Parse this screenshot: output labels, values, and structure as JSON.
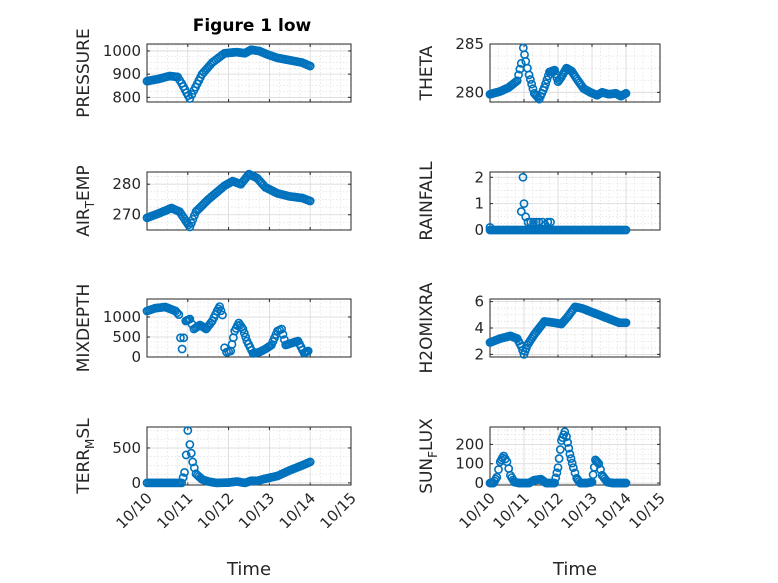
{
  "figure": {
    "title": "Figure 1 low",
    "marker_color": "#0072BD",
    "axis_color": "#262626",
    "grid": true,
    "minor_grid": true
  },
  "chart_data": [
    {
      "id": "pressure",
      "type": "scatter",
      "title": "Figure 1 low",
      "ylabel_parts": [
        {
          "t": "PRESSURE",
          "sub": false
        }
      ],
      "xlabel": "",
      "xlim": [
        0,
        5
      ],
      "ylim": [
        780,
        1030
      ],
      "yticks": [
        800,
        900,
        1000
      ],
      "x_ticklabels_visible": false,
      "keypoints": [
        [
          0,
          870
        ],
        [
          0.3,
          880
        ],
        [
          0.55,
          892
        ],
        [
          0.75,
          888
        ],
        [
          0.85,
          860
        ],
        [
          0.97,
          820
        ],
        [
          1.05,
          795
        ],
        [
          1.15,
          830
        ],
        [
          1.35,
          900
        ],
        [
          1.6,
          950
        ],
        [
          1.9,
          990
        ],
        [
          2.2,
          995
        ],
        [
          2.4,
          990
        ],
        [
          2.55,
          1005
        ],
        [
          2.75,
          1000
        ],
        [
          2.95,
          985
        ],
        [
          3.2,
          970
        ],
        [
          3.5,
          960
        ],
        [
          3.8,
          950
        ],
        [
          4.0,
          935
        ]
      ]
    },
    {
      "id": "theta",
      "type": "scatter",
      "title": "",
      "ylabel_parts": [
        {
          "t": "THETA",
          "sub": false
        }
      ],
      "xlabel": "",
      "xlim": [
        0,
        5
      ],
      "ylim": [
        279,
        285
      ],
      "yticks": [
        280,
        285
      ],
      "x_ticklabels_visible": false,
      "keypoints": [
        [
          0,
          279.8
        ],
        [
          0.3,
          280.1
        ],
        [
          0.55,
          280.5
        ],
        [
          0.8,
          281.2
        ],
        [
          0.92,
          283.0
        ],
        [
          0.98,
          284.6
        ],
        [
          1.05,
          283.2
        ],
        [
          1.15,
          281.8
        ],
        [
          1.3,
          279.9
        ],
        [
          1.45,
          279.3
        ],
        [
          1.6,
          280.5
        ],
        [
          1.75,
          282.1
        ],
        [
          1.9,
          282.3
        ],
        [
          2.0,
          281.1
        ],
        [
          2.1,
          281.6
        ],
        [
          2.25,
          282.5
        ],
        [
          2.4,
          282.2
        ],
        [
          2.55,
          281.4
        ],
        [
          2.75,
          280.4
        ],
        [
          2.95,
          280.0
        ],
        [
          3.15,
          279.7
        ],
        [
          3.3,
          280.0
        ],
        [
          3.5,
          279.8
        ],
        [
          3.7,
          279.9
        ],
        [
          3.85,
          279.6
        ],
        [
          4.0,
          279.9
        ]
      ]
    },
    {
      "id": "air_temp",
      "type": "scatter",
      "title": "",
      "ylabel_parts": [
        {
          "t": "AIR",
          "sub": false
        },
        {
          "t": "T",
          "sub": true
        },
        {
          "t": "EMP",
          "sub": false
        }
      ],
      "xlabel": "",
      "xlim": [
        0,
        5
      ],
      "ylim": [
        265,
        284
      ],
      "yticks": [
        270,
        280
      ],
      "x_ticklabels_visible": false,
      "keypoints": [
        [
          0,
          269
        ],
        [
          0.3,
          270.5
        ],
        [
          0.6,
          272.2
        ],
        [
          0.8,
          271
        ],
        [
          0.95,
          268
        ],
        [
          1.05,
          266
        ],
        [
          1.2,
          271
        ],
        [
          1.5,
          275
        ],
        [
          1.9,
          279.5
        ],
        [
          2.1,
          281
        ],
        [
          2.3,
          280
        ],
        [
          2.5,
          283.3
        ],
        [
          2.7,
          282
        ],
        [
          2.9,
          279
        ],
        [
          3.2,
          277
        ],
        [
          3.5,
          276
        ],
        [
          3.8,
          275.5
        ],
        [
          4.0,
          274.5
        ]
      ]
    },
    {
      "id": "rainfall",
      "type": "scatter",
      "title": "",
      "ylabel_parts": [
        {
          "t": "RAINFALL",
          "sub": false
        }
      ],
      "xlabel": "",
      "xlim": [
        0,
        5
      ],
      "ylim": [
        0,
        2.2
      ],
      "yticks": [
        0,
        1,
        2
      ],
      "x_ticklabels_visible": false,
      "keypoints": [
        [
          0,
          0.1
        ],
        [
          0.1,
          0
        ],
        [
          0.9,
          0
        ],
        [
          1.0,
          0
        ]
      ],
      "spikes": [
        [
          0,
          0.1
        ],
        [
          0.92,
          0.7
        ],
        [
          0.97,
          2.0
        ],
        [
          1.0,
          1.0
        ],
        [
          1.05,
          0.5
        ],
        [
          1.12,
          0.3
        ],
        [
          1.2,
          0.3
        ],
        [
          1.28,
          0.3
        ],
        [
          1.36,
          0.3
        ],
        [
          1.44,
          0.3
        ],
        [
          1.55,
          0.3
        ],
        [
          1.62,
          0.2
        ],
        [
          1.7,
          0.3
        ],
        [
          1.78,
          0.3
        ]
      ],
      "baseline": [
        0,
        4.0,
        0
      ]
    },
    {
      "id": "mixdepth",
      "type": "scatter",
      "title": "",
      "ylabel_parts": [
        {
          "t": "MIXDEPTH",
          "sub": false
        }
      ],
      "xlabel": "",
      "xlim": [
        0,
        5
      ],
      "ylim": [
        0,
        1450
      ],
      "yticks": [
        0,
        500,
        1000
      ],
      "x_ticklabels_visible": false,
      "keypoints": [
        [
          0,
          1150
        ],
        [
          0.2,
          1220
        ],
        [
          0.45,
          1250
        ],
        [
          0.7,
          1150
        ],
        [
          0.78,
          1060
        ],
        [
          0.82,
          480
        ],
        [
          0.86,
          200
        ],
        [
          0.9,
          480
        ],
        [
          0.95,
          900
        ],
        [
          1.05,
          950
        ],
        [
          1.15,
          700
        ],
        [
          1.3,
          800
        ],
        [
          1.45,
          700
        ],
        [
          1.6,
          900
        ],
        [
          1.72,
          1150
        ],
        [
          1.78,
          1260
        ],
        [
          1.85,
          1050
        ],
        [
          1.9,
          230
        ],
        [
          1.95,
          120
        ],
        [
          2.05,
          150
        ],
        [
          2.15,
          650
        ],
        [
          2.25,
          850
        ],
        [
          2.35,
          700
        ],
        [
          2.45,
          400
        ],
        [
          2.6,
          90
        ],
        [
          2.75,
          120
        ],
        [
          2.9,
          200
        ],
        [
          3.05,
          300
        ],
        [
          3.2,
          650
        ],
        [
          3.3,
          700
        ],
        [
          3.4,
          300
        ],
        [
          3.55,
          350
        ],
        [
          3.7,
          400
        ],
        [
          3.85,
          100
        ],
        [
          3.95,
          150
        ]
      ]
    },
    {
      "id": "h2omixra",
      "type": "scatter",
      "title": "",
      "ylabel_parts": [
        {
          "t": "H2OMIXRA",
          "sub": false
        }
      ],
      "xlabel": "",
      "xlim": [
        0,
        5
      ],
      "ylim": [
        1.8,
        6.2
      ],
      "yticks": [
        2,
        4,
        6
      ],
      "x_ticklabels_visible": false,
      "keypoints": [
        [
          0,
          2.9
        ],
        [
          0.3,
          3.2
        ],
        [
          0.6,
          3.4
        ],
        [
          0.8,
          3.2
        ],
        [
          0.92,
          2.6
        ],
        [
          1.0,
          2.0
        ],
        [
          1.1,
          2.7
        ],
        [
          1.3,
          3.5
        ],
        [
          1.6,
          4.5
        ],
        [
          1.9,
          4.4
        ],
        [
          2.1,
          4.3
        ],
        [
          2.3,
          4.9
        ],
        [
          2.5,
          5.6
        ],
        [
          2.7,
          5.5
        ],
        [
          2.9,
          5.3
        ],
        [
          3.2,
          5.0
        ],
        [
          3.5,
          4.7
        ],
        [
          3.8,
          4.4
        ],
        [
          4.0,
          4.4
        ]
      ]
    },
    {
      "id": "terr_msl",
      "type": "scatter",
      "title": "",
      "ylabel_parts": [
        {
          "t": "TERR",
          "sub": false
        },
        {
          "t": "M",
          "sub": true
        },
        {
          "t": "SL",
          "sub": false
        }
      ],
      "xlabel": "Time",
      "xlim": [
        0,
        5
      ],
      "ylim": [
        -30,
        800
      ],
      "yticks": [
        0,
        500
      ],
      "x_ticklabels_visible": true,
      "keypoints": [
        [
          0,
          0
        ],
        [
          0.85,
          0
        ],
        [
          0.92,
          150
        ],
        [
          0.96,
          400
        ],
        [
          1.0,
          750
        ],
        [
          1.05,
          550
        ],
        [
          1.12,
          300
        ],
        [
          1.2,
          130
        ],
        [
          1.35,
          50
        ],
        [
          1.5,
          20
        ],
        [
          1.7,
          0
        ],
        [
          2.0,
          5
        ],
        [
          2.2,
          20
        ],
        [
          2.4,
          0
        ],
        [
          2.55,
          30
        ],
        [
          2.7,
          30
        ],
        [
          2.9,
          60
        ],
        [
          3.2,
          100
        ],
        [
          3.5,
          180
        ],
        [
          3.8,
          250
        ],
        [
          4.0,
          300
        ]
      ]
    },
    {
      "id": "sun_flux",
      "type": "scatter",
      "title": "",
      "ylabel_parts": [
        {
          "t": "SUN",
          "sub": false
        },
        {
          "t": "F",
          "sub": true
        },
        {
          "t": "LUX",
          "sub": false
        }
      ],
      "xlabel": "Time",
      "xlim": [
        0,
        5
      ],
      "ylim": [
        -10,
        290
      ],
      "yticks": [
        0,
        100,
        200
      ],
      "x_ticklabels_visible": true,
      "keypoints": [
        [
          0,
          0
        ],
        [
          0.1,
          0
        ],
        [
          0.2,
          30
        ],
        [
          0.3,
          110
        ],
        [
          0.4,
          140
        ],
        [
          0.5,
          110
        ],
        [
          0.6,
          40
        ],
        [
          0.72,
          5
        ],
        [
          0.85,
          0
        ],
        [
          1.15,
          0
        ],
        [
          1.3,
          15
        ],
        [
          1.5,
          20
        ],
        [
          1.65,
          0
        ],
        [
          1.9,
          0
        ],
        [
          2.0,
          80
        ],
        [
          2.1,
          220
        ],
        [
          2.2,
          265
        ],
        [
          2.25,
          240
        ],
        [
          2.35,
          150
        ],
        [
          2.45,
          80
        ],
        [
          2.55,
          25
        ],
        [
          2.65,
          0
        ],
        [
          2.85,
          0
        ],
        [
          3.0,
          5
        ],
        [
          3.1,
          120
        ],
        [
          3.2,
          100
        ],
        [
          3.3,
          40
        ],
        [
          3.45,
          5
        ],
        [
          3.6,
          0
        ],
        [
          4.0,
          0
        ]
      ]
    }
  ],
  "x_ticklabels": [
    "10/10",
    "10/11",
    "10/12",
    "10/13",
    "10/14",
    "10/15"
  ],
  "x_ticks": [
    0,
    1,
    2,
    3,
    4,
    5
  ]
}
